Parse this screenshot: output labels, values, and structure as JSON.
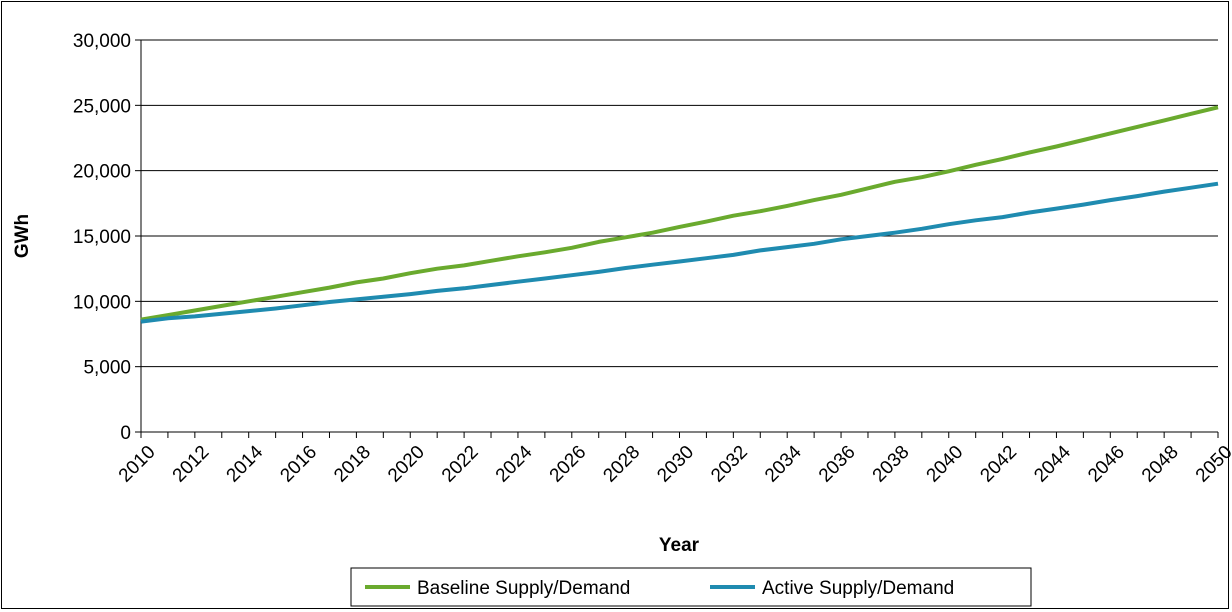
{
  "chart_data": {
    "type": "line",
    "title": "",
    "xlabel": "Year",
    "ylabel": "GWh",
    "ylim": [
      0,
      30000
    ],
    "y_ticks": [
      "0",
      "5,000",
      "10,000",
      "15,000",
      "20,000",
      "25,000",
      "30,000"
    ],
    "x_ticks": [
      "2010",
      "2012",
      "2014",
      "2016",
      "2018",
      "2020",
      "2022",
      "2024",
      "2026",
      "2028",
      "2030",
      "2032",
      "2034",
      "2036",
      "2038",
      "2040",
      "2042",
      "2044",
      "2046",
      "2048",
      "2050"
    ],
    "x": [
      2010,
      2011,
      2012,
      2013,
      2014,
      2015,
      2016,
      2017,
      2018,
      2019,
      2020,
      2021,
      2022,
      2023,
      2024,
      2025,
      2026,
      2027,
      2028,
      2029,
      2030,
      2031,
      2032,
      2033,
      2034,
      2035,
      2036,
      2037,
      2038,
      2039,
      2040,
      2041,
      2042,
      2043,
      2044,
      2045,
      2046,
      2047,
      2048,
      2049,
      2050
    ],
    "grid": true,
    "legend_position": "bottom",
    "series": [
      {
        "name": "Baseline Supply/Demand",
        "color": "#6aaa2e",
        "values": [
          8600,
          8950,
          9300,
          9650,
          10000,
          10350,
          10700,
          11050,
          11450,
          11750,
          12150,
          12500,
          12750,
          13100,
          13450,
          13750,
          14100,
          14550,
          14900,
          15250,
          15700,
          16100,
          16550,
          16900,
          17300,
          17750,
          18150,
          18650,
          19150,
          19500,
          19950,
          20450,
          20900,
          21400,
          21850,
          22350,
          22850,
          23350,
          23850,
          24350,
          24850
        ]
      },
      {
        "name": "Active Supply/Demand",
        "color": "#1f8bb0",
        "values": [
          8450,
          8700,
          8850,
          9050,
          9250,
          9450,
          9700,
          9950,
          10150,
          10350,
          10550,
          10800,
          11000,
          11250,
          11500,
          11750,
          12000,
          12250,
          12550,
          12800,
          13050,
          13300,
          13550,
          13900,
          14150,
          14400,
          14750,
          15000,
          15250,
          15550,
          15900,
          16200,
          16450,
          16800,
          17100,
          17400,
          17750,
          18050,
          18400,
          18700,
          19000
        ]
      }
    ]
  }
}
